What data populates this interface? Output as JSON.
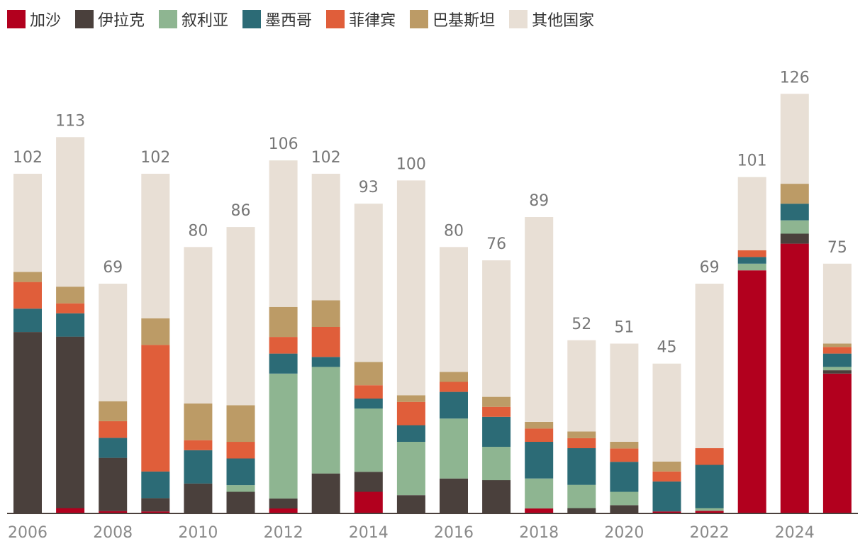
{
  "chart_data": {
    "type": "bar",
    "stacked": true,
    "title": "",
    "xlabel": "",
    "ylabel": "",
    "ylim": [
      0,
      135
    ],
    "grid": false,
    "legend_position": "top-left",
    "categories": [
      "2006",
      "2007",
      "2008",
      "2009",
      "2010",
      "2011",
      "2012",
      "2013",
      "2014",
      "2015",
      "2016",
      "2017",
      "2018",
      "2019",
      "2020",
      "2021",
      "2022",
      "2023",
      "2024",
      "2025"
    ],
    "x_tick_labels": [
      "2006",
      "",
      "2008",
      "",
      "2010",
      "",
      "2012",
      "",
      "2014",
      "",
      "2016",
      "",
      "2018",
      "",
      "2020",
      "",
      "2022",
      "",
      "2024",
      ""
    ],
    "totals": [
      102,
      113,
      69,
      102,
      80,
      86,
      106,
      102,
      93,
      100,
      80,
      76,
      89,
      52,
      51,
      45,
      69,
      101,
      126,
      75
    ],
    "series": [
      {
        "name": "加沙",
        "color": "#b2001e",
        "values": [
          0,
          1.6,
          0.7,
          0.6,
          0,
          0,
          1.5,
          0,
          6.5,
          0,
          0,
          0,
          1.5,
          0,
          0,
          0.6,
          0.8,
          73,
          81,
          42
        ]
      },
      {
        "name": "伊拉克",
        "color": "#4a403c",
        "values": [
          54.5,
          51.5,
          16,
          4,
          9,
          6.5,
          3,
          12,
          6,
          5.5,
          10.5,
          10,
          0,
          1.6,
          2.5,
          0,
          0,
          0,
          3,
          1
        ]
      },
      {
        "name": "叙利亚",
        "color": "#8eb591",
        "values": [
          0,
          0,
          0,
          0,
          0,
          2,
          37.5,
          32,
          19,
          16,
          18,
          10,
          9,
          7,
          4,
          0,
          0.8,
          2,
          4,
          1
        ]
      },
      {
        "name": "墨西哥",
        "color": "#2c6b76",
        "values": [
          7,
          7,
          6,
          8,
          10,
          8,
          6,
          3,
          3,
          5,
          8,
          9,
          11,
          11,
          9,
          9,
          13,
          2,
          5,
          4
        ]
      },
      {
        "name": "菲律宾",
        "color": "#e05e3a",
        "values": [
          8,
          3,
          5,
          38,
          3,
          5,
          5,
          9,
          4,
          7,
          3,
          3,
          4,
          3,
          4,
          3,
          5,
          2,
          0,
          2
        ]
      },
      {
        "name": "巴基斯坦",
        "color": "#bc9b66",
        "values": [
          3,
          5,
          6,
          8,
          11,
          11,
          9,
          8,
          7,
          2,
          3,
          3,
          2,
          2,
          2,
          3,
          0,
          0,
          6,
          1
        ]
      },
      {
        "name": "其他国家",
        "color": "#e8dfd5",
        "values": [
          29.5,
          44.9,
          35.3,
          43.4,
          47,
          53.5,
          44,
          38,
          47.5,
          64.5,
          37.5,
          41,
          61.5,
          27.4,
          29.5,
          29.4,
          49.4,
          22,
          27,
          24
        ]
      }
    ]
  }
}
